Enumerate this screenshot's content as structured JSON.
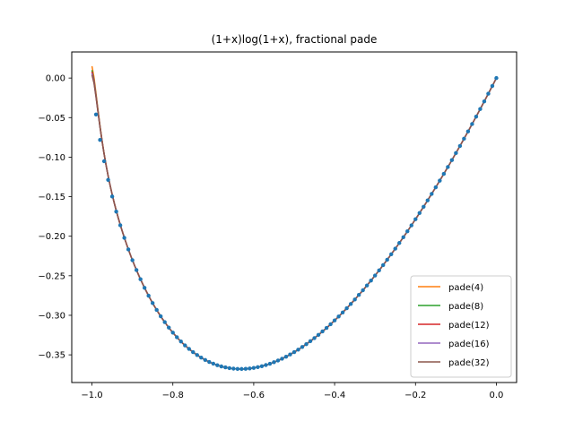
{
  "chart_data": {
    "type": "line",
    "title": "(1+x)log(1+x), fractional pade",
    "xlabel": "",
    "ylabel": "",
    "xlim": [
      -1.05,
      0.05
    ],
    "ylim": [
      -0.385,
      0.033
    ],
    "x_ticks": [
      -1.0,
      -0.8,
      -0.6,
      -0.4,
      -0.2,
      0.0
    ],
    "x_tick_labels": [
      "−1.0",
      "−0.8",
      "−0.6",
      "−0.4",
      "−0.2",
      "0.0"
    ],
    "y_ticks": [
      0.0,
      -0.05,
      -0.1,
      -0.15,
      -0.2,
      -0.25,
      -0.3,
      -0.35
    ],
    "y_tick_labels": [
      "0.00",
      "−0.05",
      "−0.10",
      "−0.15",
      "−0.20",
      "−0.25",
      "−0.30",
      "−0.35"
    ],
    "grid": false,
    "legend_position": "lower-right",
    "sample_points": {
      "function": "(1+x)log(1+x)",
      "x_start": -0.99,
      "x_end": 0.0,
      "count": 100,
      "color": "#1f77b4"
    },
    "series": [
      {
        "name": "pade(4)",
        "color": "#ff7f0e",
        "y_at_x_minus1": 0.015
      },
      {
        "name": "pade(8)",
        "color": "#2ca02c",
        "y_at_x_minus1": 0.01
      },
      {
        "name": "pade(12)",
        "color": "#d62728",
        "y_at_x_minus1": 0.008
      },
      {
        "name": "pade(16)",
        "color": "#9467bd",
        "y_at_x_minus1": 0.006
      },
      {
        "name": "pade(32)",
        "color": "#8c564b",
        "y_at_x_minus1": 0.004
      }
    ]
  }
}
